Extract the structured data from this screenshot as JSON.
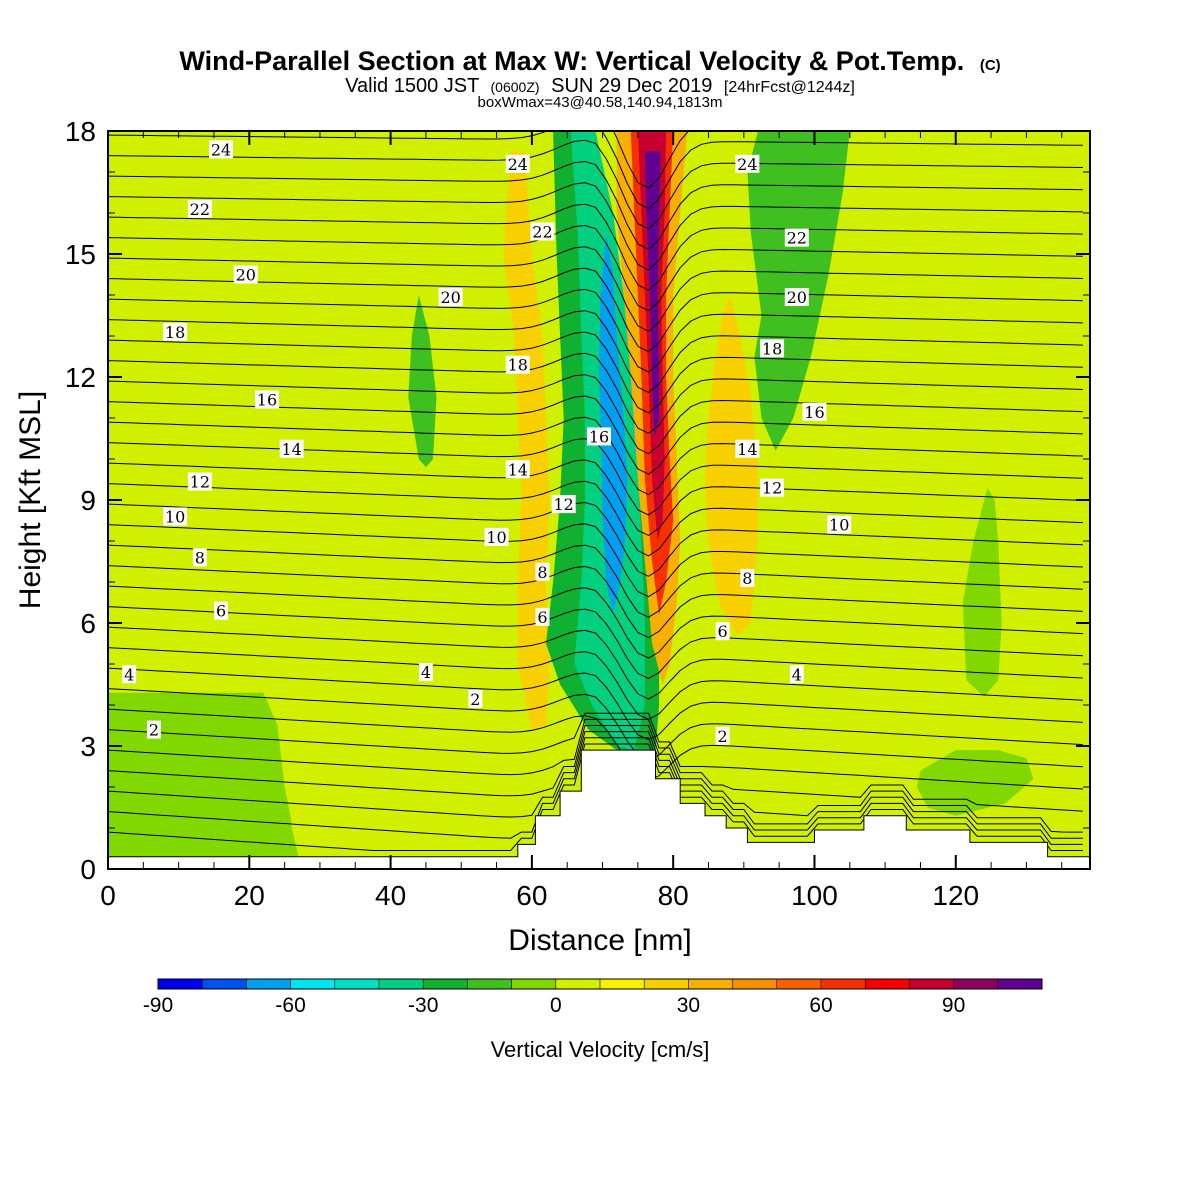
{
  "chart_data": {
    "type": "heatmap",
    "title": "Wind-Parallel Section at Max W: Vertical Velocity & Pot.Temp.",
    "title_mark": "(C)",
    "subtitle_parts": [
      "Valid 1500 JST",
      "(0600Z)",
      "SUN 29 Dec 2019",
      "[24hrFcst@1244z]"
    ],
    "subtitle2": "boxWmax=43@40.58,140.94,1813m",
    "xlabel": "Distance [nm]",
    "ylabel": "Height [Kft MSL]",
    "xlim": [
      0,
      139
    ],
    "ylim": [
      0,
      18
    ],
    "xticks": [
      0,
      20,
      40,
      60,
      80,
      100,
      120
    ],
    "yticks": [
      0,
      3,
      6,
      9,
      12,
      15,
      18
    ],
    "colorbar": {
      "label": "Vertical Velocity [cm/s]",
      "min": -90,
      "max": 110,
      "step": 10,
      "ticks": [
        -90,
        -60,
        -30,
        0,
        30,
        60,
        90
      ],
      "colors": [
        "#0000f0",
        "#0050f0",
        "#00a0f0",
        "#00e6f0",
        "#00e0c0",
        "#00d080",
        "#10b030",
        "#40c020",
        "#80d800",
        "#d0f000",
        "#f8f000",
        "#f8d000",
        "#f8b000",
        "#f89000",
        "#f86000",
        "#f83000",
        "#f80000",
        "#c80030",
        "#900060",
        "#600090"
      ]
    },
    "velocity_field": [
      {
        "w": 5,
        "region": "background"
      },
      {
        "w": -8,
        "region": "western-low-level"
      },
      {
        "w": 8,
        "region": "western-broad-weak-rise"
      },
      {
        "w": -12,
        "region": "pocket-near-45nm"
      },
      {
        "w": 20,
        "region": "leading-edge-yellow"
      },
      {
        "w": -25,
        "region": "downdraft-outer"
      },
      {
        "w": -40,
        "region": "downdraft-middle"
      },
      {
        "w": -65,
        "region": "downdraft-core"
      },
      {
        "w": 35,
        "region": "updraft-outer"
      },
      {
        "w": 60,
        "region": "updraft-middle"
      },
      {
        "w": 80,
        "region": "updraft-inner"
      },
      {
        "w": 100,
        "region": "updraft-core"
      },
      {
        "w": 22,
        "region": "lee-updraft"
      },
      {
        "w": -12,
        "region": "lee-downdraft"
      },
      {
        "w": -10,
        "region": "eastern-pockets"
      }
    ],
    "terrain_kft": [
      [
        0,
        0.3
      ],
      [
        58,
        0.3
      ],
      [
        58,
        0.6
      ],
      [
        60.5,
        0.6
      ],
      [
        60.5,
        1.3
      ],
      [
        64,
        1.3
      ],
      [
        64,
        1.9
      ],
      [
        67,
        1.9
      ],
      [
        67,
        2.9
      ],
      [
        77.5,
        2.9
      ],
      [
        77.5,
        2.2
      ],
      [
        81,
        2.2
      ],
      [
        81,
        1.6
      ],
      [
        84.5,
        1.6
      ],
      [
        84.5,
        1.3
      ],
      [
        87.5,
        1.3
      ],
      [
        87.5,
        1.0
      ],
      [
        90.5,
        1.0
      ],
      [
        90.5,
        0.65
      ],
      [
        100,
        0.65
      ],
      [
        100,
        0.95
      ],
      [
        107,
        0.95
      ],
      [
        107,
        1.3
      ],
      [
        113,
        1.3
      ],
      [
        113,
        0.95
      ],
      [
        122,
        0.95
      ],
      [
        122,
        0.65
      ],
      [
        133,
        0.65
      ],
      [
        133,
        0.3
      ],
      [
        139,
        0.3
      ]
    ],
    "theta_labels": [
      {
        "text": "24",
        "x": 16,
        "y": 17.55
      },
      {
        "text": "24",
        "x": 58,
        "y": 17.2
      },
      {
        "text": "24",
        "x": 90.5,
        "y": 17.2
      },
      {
        "text": "22",
        "x": 13,
        "y": 16.1
      },
      {
        "text": "22",
        "x": 61.5,
        "y": 15.55
      },
      {
        "text": "22",
        "x": 97.5,
        "y": 15.4
      },
      {
        "text": "20",
        "x": 19.5,
        "y": 14.5
      },
      {
        "text": "20",
        "x": 48.5,
        "y": 13.95
      },
      {
        "text": "20",
        "x": 97.5,
        "y": 13.95
      },
      {
        "text": "18",
        "x": 9.5,
        "y": 13.1
      },
      {
        "text": "18",
        "x": 58,
        "y": 12.3
      },
      {
        "text": "18",
        "x": 94,
        "y": 12.7
      },
      {
        "text": "16",
        "x": 22.5,
        "y": 11.45
      },
      {
        "text": "16",
        "x": 69.5,
        "y": 10.55
      },
      {
        "text": "16",
        "x": 100,
        "y": 11.15
      },
      {
        "text": "14",
        "x": 26,
        "y": 10.25
      },
      {
        "text": "14",
        "x": 58,
        "y": 9.75
      },
      {
        "text": "14",
        "x": 90.5,
        "y": 10.25
      },
      {
        "text": "12",
        "x": 13,
        "y": 9.45
      },
      {
        "text": "12",
        "x": 64.5,
        "y": 8.9
      },
      {
        "text": "12",
        "x": 94,
        "y": 9.3
      },
      {
        "text": "10",
        "x": 9.5,
        "y": 8.6
      },
      {
        "text": "10",
        "x": 55,
        "y": 8.1
      },
      {
        "text": "10",
        "x": 103.5,
        "y": 8.4
      },
      {
        "text": "8",
        "x": 13,
        "y": 7.6
      },
      {
        "text": "8",
        "x": 61.5,
        "y": 7.25
      },
      {
        "text": "8",
        "x": 90.5,
        "y": 7.1
      },
      {
        "text": "6",
        "x": 16,
        "y": 6.3
      },
      {
        "text": "6",
        "x": 61.5,
        "y": 6.15
      },
      {
        "text": "6",
        "x": 87,
        "y": 5.8
      },
      {
        "text": "4",
        "x": 3,
        "y": 4.75
      },
      {
        "text": "4",
        "x": 45,
        "y": 4.8
      },
      {
        "text": "4",
        "x": 97.5,
        "y": 4.75
      },
      {
        "text": "2",
        "x": 6.5,
        "y": 3.4
      },
      {
        "text": "2",
        "x": 52,
        "y": 4.15
      },
      {
        "text": "2",
        "x": 87,
        "y": 3.25
      }
    ]
  }
}
